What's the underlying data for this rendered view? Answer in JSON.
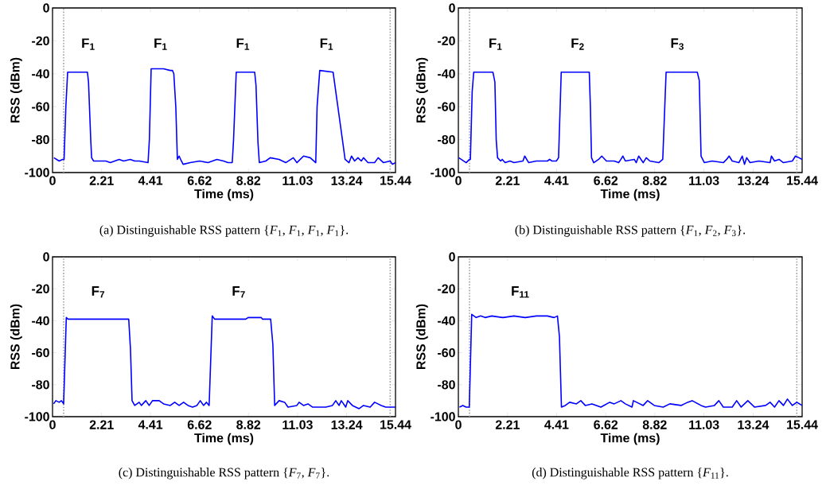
{
  "chart_data": [
    {
      "type": "line",
      "xlabel": "Time (ms)",
      "ylabel": "RSS (dBm)",
      "xlim": [
        0,
        15.44
      ],
      "ylim": [
        -100,
        0
      ],
      "xticks": [
        0,
        2.21,
        4.41,
        6.62,
        8.82,
        11.03,
        13.24,
        15.44
      ],
      "yticks": [
        -100,
        -80,
        -60,
        -40,
        -20,
        0
      ],
      "series": [
        {
          "color": "#0000ff",
          "x": [
            0.06,
            0.3,
            0.45,
            0.52,
            0.6,
            0.68,
            1.57,
            1.62,
            1.72,
            1.76,
            1.85,
            2.4,
            2.6,
            2.8,
            3.0,
            3.2,
            3.5,
            3.7,
            3.9,
            4.3,
            4.36,
            4.44,
            4.8,
            5.0,
            5.3,
            5.4,
            5.46,
            5.55,
            5.62,
            5.7,
            5.8,
            5.88,
            6.2,
            6.62,
            7.0,
            7.4,
            7.7,
            7.9,
            8.09,
            8.15,
            8.27,
            9.1,
            9.16,
            9.25,
            9.31,
            9.6,
            9.8,
            10.2,
            10.5,
            10.84,
            11.0,
            11.3,
            11.6,
            11.85,
            11.91,
            12.03,
            12.63,
            13.05,
            13.17,
            13.35,
            13.46,
            13.6,
            13.75,
            13.9,
            14.0,
            14.2,
            14.5,
            14.66,
            14.9,
            15.2,
            15.3,
            15.44
          ],
          "values": [
            -91,
            -93,
            -92,
            -92,
            -60,
            -39,
            -39,
            -45,
            -80,
            -91,
            -93,
            -93,
            -94,
            -93,
            -92,
            -93,
            -92,
            -93,
            -93,
            -94,
            -80,
            -37,
            -37,
            -37,
            -38,
            -38,
            -40,
            -60,
            -92,
            -90,
            -93,
            -95,
            -94,
            -93,
            -94,
            -92,
            -93,
            -94,
            -94,
            -80,
            -39,
            -39,
            -47,
            -82,
            -94,
            -93,
            -91,
            -92,
            -94,
            -91,
            -94,
            -90,
            -91,
            -94,
            -60,
            -38,
            -39,
            -80,
            -92,
            -94,
            -90,
            -93,
            -91,
            -93,
            -91,
            -94,
            -94,
            -91,
            -94,
            -93,
            -95,
            -94
          ]
        }
      ],
      "ref_lines": [
        {
          "axis": "x",
          "value": 0.5,
          "color": "#a0a0a0",
          "line_style": "dotted"
        },
        {
          "axis": "x",
          "value": 15.2,
          "color": "#a0a0a0",
          "line_style": "dotted"
        }
      ],
      "annotations": [
        "F$_{1}$",
        "F$_{1}$",
        "F$_{1}$",
        "F$_{1}$",
        "(a)  Distinguishable RSS pattern {*F*$_{1}$, *F*$_{1}$, *F*$_{1}$, *F*$_{1}$}."
      ]
    },
    {
      "type": "line",
      "xlabel": "Time (ms)",
      "ylabel": "RSS (dBm)",
      "xlim": [
        0,
        15.44
      ],
      "ylim": [
        -100,
        0
      ],
      "xticks": [
        0,
        2.21,
        4.41,
        6.62,
        8.82,
        11.03,
        13.24,
        15.44
      ],
      "yticks": [
        -100,
        -80,
        -60,
        -40,
        -20,
        0
      ],
      "series": [
        {
          "color": "#0000ff",
          "x": [
            0.02,
            0.35,
            0.5,
            0.54,
            0.62,
            0.69,
            1.55,
            1.64,
            1.7,
            1.76,
            1.9,
            1.97,
            2.1,
            2.32,
            2.5,
            2.9,
            2.98,
            3.16,
            3.5,
            4.0,
            4.1,
            4.2,
            4.4,
            4.5,
            4.62,
            5.88,
            5.93,
            5.98,
            6.08,
            6.3,
            6.44,
            6.65,
            7.0,
            7.2,
            7.3,
            7.39,
            7.5,
            7.9,
            7.99,
            8.1,
            8.3,
            8.44,
            8.6,
            9.0,
            9.18,
            9.33,
            10.73,
            10.82,
            10.9,
            11.05,
            11.4,
            11.9,
            12.05,
            12.16,
            12.3,
            12.6,
            12.75,
            12.85,
            12.95,
            13.1,
            13.5,
            14.0,
            14.06,
            14.2,
            14.4,
            14.6,
            15.0,
            15.14,
            15.3,
            15.44
          ],
          "values": [
            -91,
            -94,
            -92,
            -92,
            -51,
            -39,
            -39,
            -45,
            -80,
            -91,
            -93,
            -92,
            -94,
            -93,
            -94,
            -93,
            -90,
            -94,
            -93,
            -93,
            -92,
            -93,
            -93,
            -91,
            -39,
            -39,
            -60,
            -91,
            -94,
            -92,
            -90,
            -93,
            -93,
            -94,
            -92,
            -90,
            -93,
            -92,
            -94,
            -90,
            -94,
            -91,
            -93,
            -94,
            -92,
            -39,
            -39,
            -44,
            -90,
            -94,
            -93,
            -94,
            -92,
            -90,
            -93,
            -94,
            -90,
            -95,
            -91,
            -94,
            -93,
            -94,
            -90,
            -93,
            -92,
            -94,
            -93,
            -90,
            -91,
            -92
          ]
        }
      ],
      "ref_lines": [
        {
          "axis": "x",
          "value": 0.5,
          "color": "#a0a0a0",
          "line_style": "dotted"
        },
        {
          "axis": "x",
          "value": 15.2,
          "color": "#a0a0a0",
          "line_style": "dotted"
        }
      ],
      "annotations": [
        "F$_{1}$",
        "F$_{2}$",
        "F$_{3}$",
        "(b)  Distinguishable RSS pattern {*F*$_{1}$, *F*$_{2}$, *F*$_{3}$}."
      ]
    },
    {
      "type": "line",
      "xlabel": "Time (ms)",
      "ylabel": "RSS (dBm)",
      "xlim": [
        0,
        15.44
      ],
      "ylim": [
        -100,
        0
      ],
      "xticks": [
        0,
        2.21,
        4.41,
        6.62,
        8.82,
        11.03,
        13.24,
        15.44
      ],
      "yticks": [
        -100,
        -80,
        -60,
        -40,
        -20,
        0
      ],
      "series": [
        {
          "color": "#0000ff",
          "x": [
            0.05,
            0.15,
            0.3,
            0.4,
            0.5,
            0.62,
            0.7,
            3.43,
            3.51,
            3.58,
            3.7,
            3.9,
            4.0,
            4.2,
            4.35,
            4.5,
            4.8,
            5.0,
            5.3,
            5.5,
            5.7,
            5.9,
            6.1,
            6.3,
            6.5,
            6.65,
            6.8,
            6.93,
            7.05,
            7.19,
            7.3,
            8.7,
            8.8,
            9.4,
            9.45,
            9.82,
            9.92,
            10.0,
            10.2,
            10.45,
            10.6,
            11.0,
            11.1,
            11.3,
            11.5,
            11.7,
            12.3,
            12.6,
            12.75,
            12.9,
            13.0,
            13.2,
            13.29,
            13.5,
            13.8,
            14.0,
            14.3,
            14.5,
            14.8,
            15.0,
            15.44
          ],
          "values": [
            -92,
            -90,
            -91,
            -90,
            -92,
            -38,
            -39,
            -39,
            -58,
            -90,
            -93,
            -91,
            -93,
            -90,
            -93,
            -90,
            -90,
            -92,
            -93,
            -91,
            -93,
            -91,
            -93,
            -94,
            -93,
            -90,
            -93,
            -91,
            -93,
            -37,
            -39,
            -39,
            -38,
            -38,
            -39,
            -39,
            -55,
            -93,
            -90,
            -91,
            -94,
            -93,
            -91,
            -93,
            -92,
            -94,
            -94,
            -93,
            -90,
            -93,
            -90,
            -94,
            -90,
            -93,
            -95,
            -93,
            -94,
            -91,
            -93,
            -94,
            -94
          ]
        }
      ],
      "ref_lines": [
        {
          "axis": "x",
          "value": 0.5,
          "color": "#a0a0a0",
          "line_style": "dotted"
        },
        {
          "axis": "x",
          "value": 15.2,
          "color": "#a0a0a0",
          "line_style": "dotted"
        }
      ],
      "annotations": [
        "F$_{7}$",
        "F$_{7}$",
        "(c)  Distinguishable RSS pattern {*F*$_{7}$, *F*$_{7}$}."
      ]
    },
    {
      "type": "line",
      "xlabel": "Time (ms)",
      "ylabel": "RSS (dBm)",
      "xlim": [
        0,
        15.44
      ],
      "ylim": [
        -100,
        0
      ],
      "xticks": [
        0,
        2.21,
        4.41,
        6.62,
        8.82,
        11.03,
        13.24,
        15.44
      ],
      "yticks": [
        -100,
        -80,
        -60,
        -40,
        -20,
        0
      ],
      "series": [
        {
          "color": "#0000ff",
          "x": [
            0.05,
            0.2,
            0.35,
            0.49,
            0.6,
            0.8,
            1.0,
            1.2,
            1.5,
            2.0,
            2.5,
            3.0,
            3.5,
            4.0,
            4.3,
            4.45,
            4.54,
            4.63,
            4.8,
            5.0,
            5.3,
            5.5,
            5.7,
            6.0,
            6.4,
            6.8,
            7.0,
            7.3,
            7.5,
            7.8,
            7.86,
            8.3,
            8.5,
            8.8,
            9.2,
            9.5,
            10.0,
            10.3,
            10.5,
            10.9,
            11.1,
            11.5,
            11.7,
            11.9,
            12.3,
            12.5,
            12.7,
            13.0,
            13.3,
            13.8,
            14.0,
            14.2,
            14.4,
            14.6,
            14.78,
            15.0,
            15.2,
            15.44
          ],
          "values": [
            -94,
            -93,
            -94,
            -94,
            -36,
            -38,
            -37,
            -38,
            -37,
            -38,
            -37,
            -38,
            -37,
            -37,
            -38,
            -37,
            -50,
            -94,
            -93,
            -91,
            -92,
            -90,
            -93,
            -92,
            -94,
            -91,
            -92,
            -90,
            -92,
            -94,
            -90,
            -93,
            -90,
            -93,
            -94,
            -92,
            -93,
            -91,
            -90,
            -93,
            -94,
            -93,
            -90,
            -94,
            -94,
            -90,
            -94,
            -90,
            -94,
            -93,
            -91,
            -94,
            -90,
            -93,
            -89,
            -93,
            -91,
            -93
          ]
        }
      ],
      "ref_lines": [
        {
          "axis": "x",
          "value": 0.5,
          "color": "#a0a0a0",
          "line_style": "dotted"
        },
        {
          "axis": "x",
          "value": 15.2,
          "color": "#a0a0a0",
          "line_style": "dotted"
        }
      ],
      "annotations": [
        "F$_{11}$",
        "(d)  Distinguishable RSS pattern {*F*$_{11}$}."
      ]
    }
  ]
}
